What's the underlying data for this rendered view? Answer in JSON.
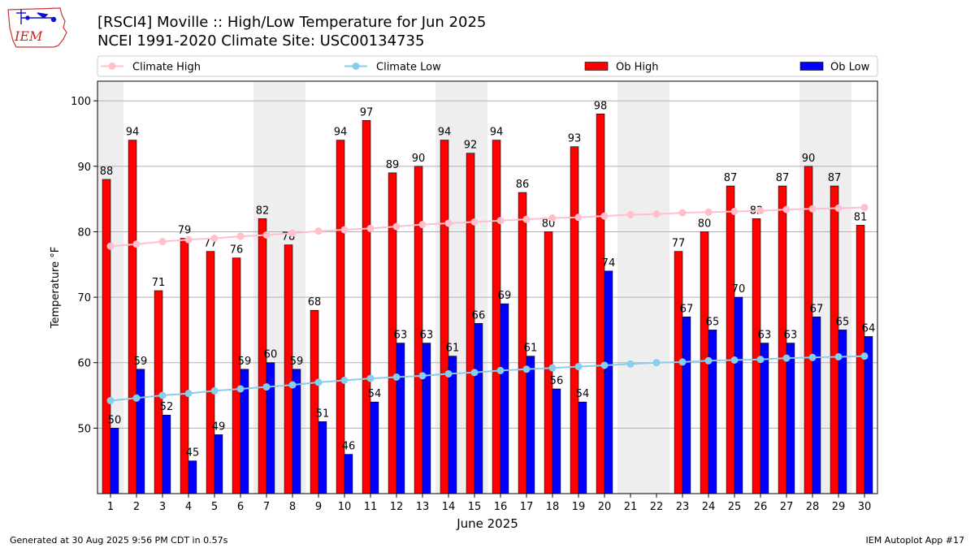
{
  "header": {
    "title_line1": "[RSCI4] Moville :: High/Low Temperature for Jun 2025",
    "title_line2": "NCEI 1991-2020 Climate Site: USC00134735",
    "logo_text": "IEM"
  },
  "footer": {
    "generated": "Generated at 30 Aug 2025 9:56 PM CDT in 0.57s",
    "app": "IEM Autoplot App #17"
  },
  "colors": {
    "ob_high": "#ff0000",
    "ob_low": "#0000ff",
    "climate_high": "#ffc0cb",
    "climate_low": "#87ceeb",
    "weekend_shade": "#eeeeee"
  },
  "chart_data": {
    "type": "bar",
    "xlabel": "June 2025",
    "ylabel": "Temperature °F",
    "ylim": [
      40,
      103
    ],
    "yticks": [
      50,
      60,
      70,
      80,
      90,
      100
    ],
    "grid": "horizontal",
    "legend_position": "top",
    "categories": [
      "1",
      "2",
      "3",
      "4",
      "5",
      "6",
      "7",
      "8",
      "9",
      "10",
      "11",
      "12",
      "13",
      "14",
      "15",
      "16",
      "17",
      "18",
      "19",
      "20",
      "21",
      "22",
      "23",
      "24",
      "25",
      "26",
      "27",
      "28",
      "29",
      "30"
    ],
    "weekend_days": [
      1,
      7,
      8,
      14,
      15,
      21,
      22,
      28,
      29
    ],
    "series": [
      {
        "name": "Ob High",
        "kind": "bar",
        "values": [
          88,
          94,
          71,
          79,
          77,
          76,
          82,
          78,
          68,
          94,
          97,
          89,
          90,
          94,
          92,
          94,
          86,
          80,
          93,
          98,
          null,
          null,
          77,
          80,
          87,
          82,
          87,
          90,
          87,
          81
        ]
      },
      {
        "name": "Ob Low",
        "kind": "bar",
        "values": [
          50,
          59,
          52,
          45,
          49,
          59,
          60,
          59,
          51,
          46,
          54,
          63,
          63,
          61,
          66,
          69,
          61,
          56,
          54,
          74,
          null,
          null,
          67,
          65,
          70,
          63,
          63,
          67,
          65,
          64
        ]
      },
      {
        "name": "Climate High",
        "kind": "line",
        "values": [
          77.8,
          78.1,
          78.5,
          78.8,
          79.0,
          79.3,
          79.5,
          79.8,
          80.1,
          80.3,
          80.5,
          80.8,
          81.1,
          81.3,
          81.5,
          81.7,
          81.9,
          82.1,
          82.2,
          82.4,
          82.6,
          82.7,
          82.9,
          83.0,
          83.1,
          83.2,
          83.4,
          83.5,
          83.6,
          83.7
        ]
      },
      {
        "name": "Climate Low",
        "kind": "line",
        "values": [
          54.2,
          54.6,
          55.0,
          55.3,
          55.7,
          56.0,
          56.3,
          56.6,
          57.0,
          57.3,
          57.6,
          57.8,
          58.0,
          58.3,
          58.5,
          58.8,
          59.0,
          59.2,
          59.4,
          59.6,
          59.8,
          60.0,
          60.1,
          60.3,
          60.4,
          60.5,
          60.7,
          60.8,
          60.9,
          61.0
        ]
      }
    ]
  }
}
